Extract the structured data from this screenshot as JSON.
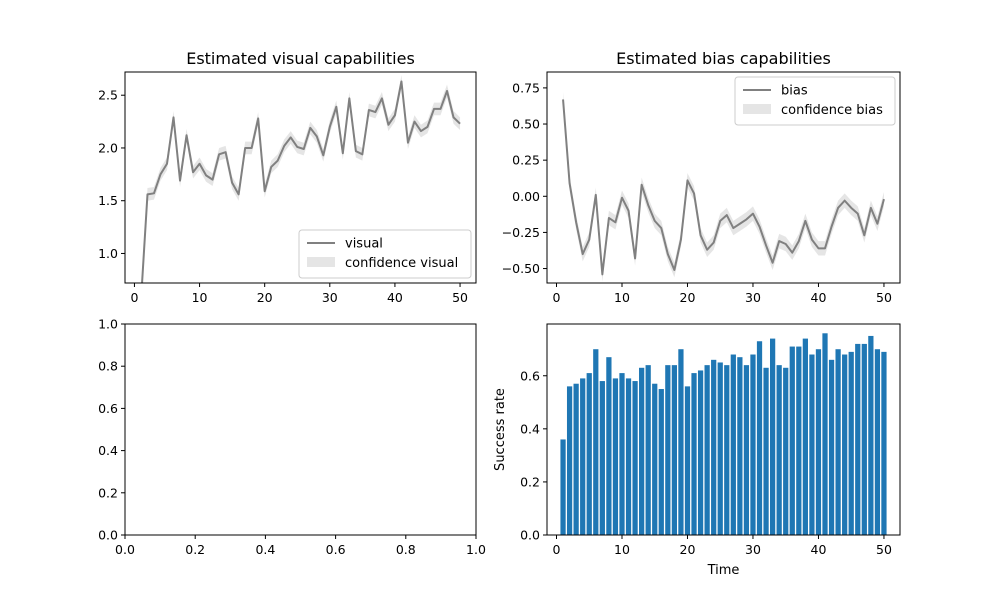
{
  "chart_data": [
    {
      "type": "line",
      "title": "Estimated visual capabilities",
      "xlabel": "",
      "ylabel": "",
      "xlim": [
        -1.45,
        52.45
      ],
      "ylim": [
        0.72,
        2.72
      ],
      "xticks": [
        0,
        10,
        20,
        30,
        40,
        50
      ],
      "yticks": [
        1.0,
        1.5,
        2.0,
        2.5
      ],
      "ytick_labels": [
        "1.0",
        "1.5",
        "2.0",
        "2.5"
      ],
      "grid": false,
      "legend_position": "lower-right",
      "colors": {
        "line": "#808080",
        "band": "#d3d3d3"
      },
      "x": [
        1,
        2,
        3,
        4,
        5,
        6,
        7,
        8,
        9,
        10,
        11,
        12,
        13,
        14,
        15,
        16,
        17,
        18,
        19,
        20,
        21,
        22,
        23,
        24,
        25,
        26,
        27,
        28,
        29,
        30,
        31,
        32,
        33,
        34,
        35,
        36,
        37,
        38,
        39,
        40,
        41,
        42,
        43,
        44,
        45,
        46,
        47,
        48,
        49,
        50
      ],
      "series": [
        {
          "name": "visual",
          "values": [
            0.55,
            1.56,
            1.57,
            1.75,
            1.85,
            2.29,
            1.69,
            2.12,
            1.77,
            1.85,
            1.74,
            1.7,
            1.94,
            1.96,
            1.67,
            1.56,
            2.0,
            2.0,
            2.28,
            1.59,
            1.82,
            1.88,
            2.02,
            2.1,
            2.01,
            1.99,
            2.19,
            2.11,
            1.93,
            2.2,
            2.39,
            1.95,
            2.47,
            1.97,
            1.94,
            2.36,
            2.34,
            2.47,
            2.22,
            2.31,
            2.63,
            2.05,
            2.25,
            2.16,
            2.2,
            2.37,
            2.37,
            2.54,
            2.29,
            2.23
          ],
          "band_name": "confidence visual",
          "band_halfwidth": 0.06
        }
      ]
    },
    {
      "type": "line",
      "title": "Estimated bias capabilities",
      "xlabel": "",
      "ylabel": "",
      "xlim": [
        -1.45,
        52.45
      ],
      "ylim": [
        -0.6,
        0.86
      ],
      "xticks": [
        0,
        10,
        20,
        30,
        40,
        50
      ],
      "yticks": [
        -0.5,
        -0.25,
        0.0,
        0.25,
        0.5,
        0.75
      ],
      "ytick_labels": [
        "−0.50",
        "−0.25",
        "0.00",
        "0.25",
        "0.50",
        "0.75"
      ],
      "grid": false,
      "legend_position": "top-right",
      "colors": {
        "line": "#808080",
        "band": "#d3d3d3"
      },
      "x": [
        1,
        2,
        3,
        4,
        5,
        6,
        7,
        8,
        9,
        10,
        11,
        12,
        13,
        14,
        15,
        16,
        17,
        18,
        19,
        20,
        21,
        22,
        23,
        24,
        25,
        26,
        27,
        28,
        29,
        30,
        31,
        32,
        33,
        34,
        35,
        36,
        37,
        38,
        39,
        40,
        41,
        42,
        43,
        44,
        45,
        46,
        47,
        48,
        49,
        50
      ],
      "series": [
        {
          "name": "bias",
          "values": [
            0.67,
            0.09,
            -0.18,
            -0.4,
            -0.3,
            0.01,
            -0.54,
            -0.15,
            -0.18,
            -0.01,
            -0.1,
            -0.43,
            0.08,
            -0.06,
            -0.17,
            -0.22,
            -0.4,
            -0.51,
            -0.3,
            0.11,
            0.02,
            -0.27,
            -0.37,
            -0.32,
            -0.17,
            -0.13,
            -0.22,
            -0.19,
            -0.16,
            -0.12,
            -0.21,
            -0.34,
            -0.46,
            -0.31,
            -0.33,
            -0.39,
            -0.31,
            -0.17,
            -0.3,
            -0.36,
            -0.36,
            -0.21,
            -0.08,
            -0.03,
            -0.08,
            -0.12,
            -0.27,
            -0.08,
            -0.19,
            -0.02
          ],
          "band_name": "confidence bias",
          "band_halfwidth": 0.05
        }
      ]
    },
    {
      "type": "line",
      "title": "",
      "xlabel": "",
      "ylabel": "",
      "xlim": [
        0.0,
        1.0
      ],
      "ylim": [
        0.0,
        1.0
      ],
      "xticks": [
        0.0,
        0.2,
        0.4,
        0.6,
        0.8,
        1.0
      ],
      "yticks": [
        0.0,
        0.2,
        0.4,
        0.6,
        0.8,
        1.0
      ],
      "xtick_labels": [
        "0.0",
        "0.2",
        "0.4",
        "0.6",
        "0.8",
        "1.0"
      ],
      "ytick_labels": [
        "0.0",
        "0.2",
        "0.4",
        "0.6",
        "0.8",
        "1.0"
      ],
      "grid": false,
      "series": []
    },
    {
      "type": "bar",
      "title": "",
      "xlabel": "Time",
      "ylabel": "Success rate",
      "xlim": [
        -1.45,
        52.45
      ],
      "ylim": [
        0.0,
        0.795
      ],
      "xticks": [
        0,
        10,
        20,
        30,
        40,
        50
      ],
      "yticks": [
        0.0,
        0.2,
        0.4,
        0.6
      ],
      "ytick_labels": [
        "0.0",
        "0.2",
        "0.4",
        "0.6"
      ],
      "grid": false,
      "colors": {
        "bar": "#1f77b4"
      },
      "categories": [
        1,
        2,
        3,
        4,
        5,
        6,
        7,
        8,
        9,
        10,
        11,
        12,
        13,
        14,
        15,
        16,
        17,
        18,
        19,
        20,
        21,
        22,
        23,
        24,
        25,
        26,
        27,
        28,
        29,
        30,
        31,
        32,
        33,
        34,
        35,
        36,
        37,
        38,
        39,
        40,
        41,
        42,
        43,
        44,
        45,
        46,
        47,
        48,
        49,
        50
      ],
      "values": [
        0.36,
        0.56,
        0.57,
        0.59,
        0.61,
        0.7,
        0.58,
        0.67,
        0.59,
        0.61,
        0.59,
        0.58,
        0.63,
        0.64,
        0.57,
        0.55,
        0.64,
        0.64,
        0.7,
        0.56,
        0.61,
        0.62,
        0.64,
        0.66,
        0.65,
        0.64,
        0.68,
        0.67,
        0.64,
        0.68,
        0.73,
        0.63,
        0.74,
        0.64,
        0.63,
        0.71,
        0.71,
        0.74,
        0.68,
        0.7,
        0.76,
        0.66,
        0.7,
        0.68,
        0.69,
        0.72,
        0.72,
        0.75,
        0.7,
        0.69
      ]
    }
  ]
}
